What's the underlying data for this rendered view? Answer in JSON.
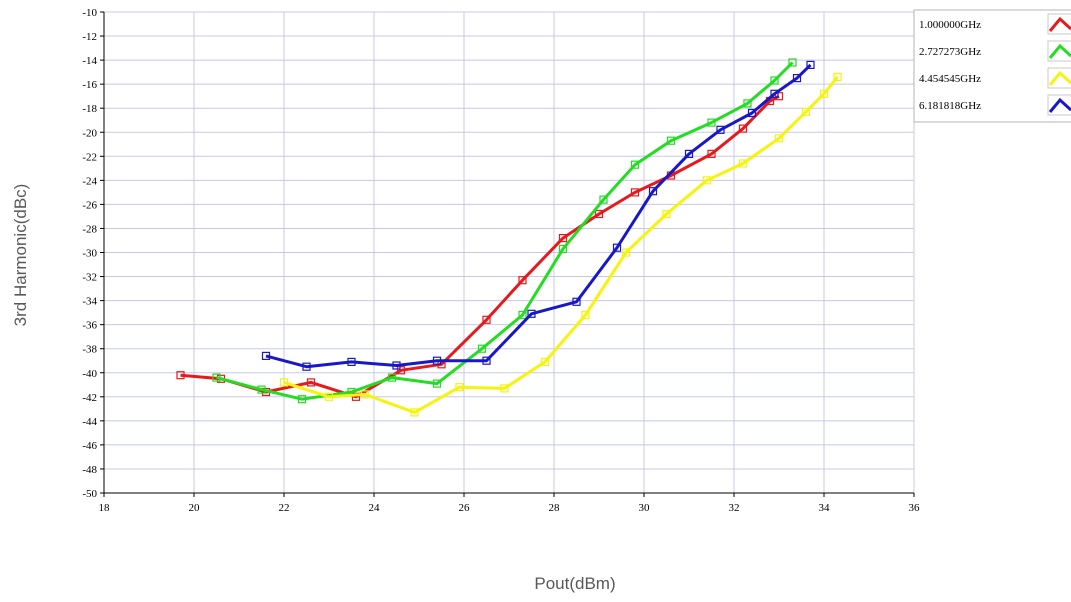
{
  "chart_data": {
    "type": "line",
    "title": "",
    "xlabel": "Pout(dBm)",
    "ylabel": "3rd Harmonic(dBc)",
    "xlim": [
      18,
      36
    ],
    "ylim": [
      -50,
      -10
    ],
    "x_ticks": [
      "18",
      "20",
      "22",
      "24",
      "26",
      "28",
      "30",
      "32",
      "34",
      "36"
    ],
    "y_ticks": [
      "-10",
      "-12",
      "-14",
      "-16",
      "-18",
      "-20",
      "-22",
      "-24",
      "-26",
      "-28",
      "-30",
      "-32",
      "-34",
      "-36",
      "-38",
      "-40",
      "-42",
      "-44",
      "-46",
      "-48",
      "-50"
    ],
    "grid": true,
    "legend_position": "top-right",
    "series": [
      {
        "name": "1.000000GHz",
        "color": "#e8191c",
        "points": [
          [
            19.7,
            -40.2
          ],
          [
            20.6,
            -40.5
          ],
          [
            21.6,
            -41.6
          ],
          [
            22.6,
            -40.8
          ],
          [
            23.6,
            -42.0
          ],
          [
            24.6,
            -39.8
          ],
          [
            25.5,
            -39.3
          ],
          [
            26.5,
            -35.6
          ],
          [
            27.3,
            -32.3
          ],
          [
            28.2,
            -28.8
          ],
          [
            29.0,
            -26.8
          ],
          [
            29.8,
            -25.0
          ],
          [
            30.6,
            -23.6
          ],
          [
            31.5,
            -21.8
          ],
          [
            32.2,
            -19.7
          ],
          [
            32.8,
            -17.4
          ],
          [
            33.0,
            -17.0
          ]
        ]
      },
      {
        "name": "2.727273GHz",
        "color": "#22dd22",
        "points": [
          [
            20.5,
            -40.4
          ],
          [
            21.5,
            -41.4
          ],
          [
            22.4,
            -42.2
          ],
          [
            23.5,
            -41.6
          ],
          [
            24.4,
            -40.4
          ],
          [
            25.4,
            -40.9
          ],
          [
            26.4,
            -38.0
          ],
          [
            27.3,
            -35.2
          ],
          [
            28.2,
            -29.7
          ],
          [
            29.1,
            -25.6
          ],
          [
            29.8,
            -22.7
          ],
          [
            30.6,
            -20.7
          ],
          [
            31.5,
            -19.2
          ],
          [
            32.3,
            -17.6
          ],
          [
            32.9,
            -15.7
          ],
          [
            33.3,
            -14.2
          ]
        ]
      },
      {
        "name": "4.454545GHz",
        "color": "#f4f40c",
        "points": [
          [
            22.0,
            -40.8
          ],
          [
            23.0,
            -42.0
          ],
          [
            23.8,
            -41.8
          ],
          [
            24.9,
            -43.3
          ],
          [
            25.9,
            -41.2
          ],
          [
            26.9,
            -41.3
          ],
          [
            27.8,
            -39.1
          ],
          [
            28.7,
            -35.2
          ],
          [
            29.6,
            -30.0
          ],
          [
            30.5,
            -26.8
          ],
          [
            31.4,
            -24.0
          ],
          [
            32.2,
            -22.6
          ],
          [
            33.0,
            -20.5
          ],
          [
            33.6,
            -18.3
          ],
          [
            34.0,
            -16.8
          ],
          [
            34.3,
            -15.4
          ]
        ]
      },
      {
        "name": "6.181818GHz",
        "color": "#1818c8",
        "points": [
          [
            21.6,
            -38.6
          ],
          [
            22.5,
            -39.5
          ],
          [
            23.5,
            -39.1
          ],
          [
            24.5,
            -39.4
          ],
          [
            25.4,
            -39.0
          ],
          [
            26.5,
            -39.0
          ],
          [
            27.5,
            -35.1
          ],
          [
            28.5,
            -34.1
          ],
          [
            29.4,
            -29.6
          ],
          [
            30.2,
            -24.9
          ],
          [
            31.0,
            -21.8
          ],
          [
            31.7,
            -19.8
          ],
          [
            32.4,
            -18.4
          ],
          [
            32.9,
            -16.8
          ],
          [
            33.4,
            -15.5
          ],
          [
            33.7,
            -14.4
          ]
        ]
      }
    ]
  }
}
